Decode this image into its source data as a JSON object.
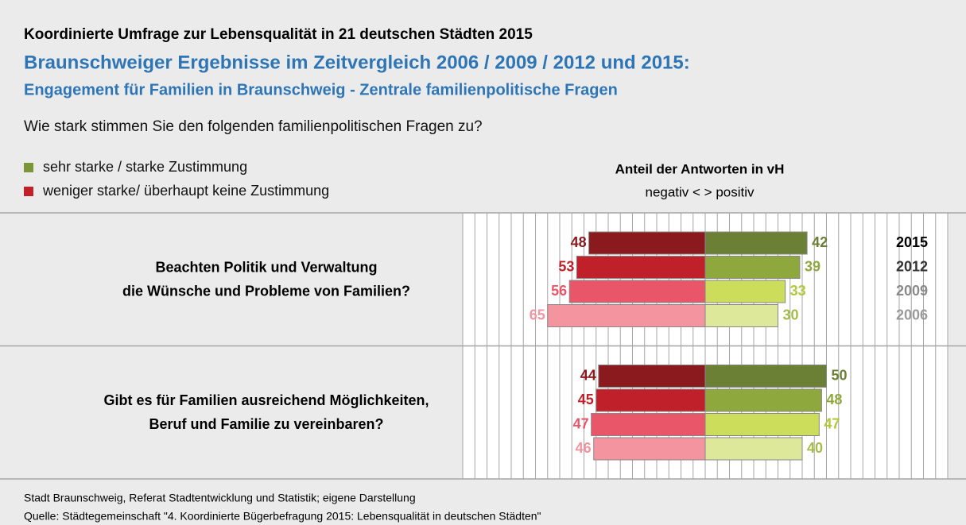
{
  "chart_data": {
    "type": "diverging_bar",
    "heading": "Koordinierte Umfrage zur Lebensqualität in 21 deutschen Städten 2015",
    "title": "Braunschweiger Ergebnisse im Zeitvergleich 2006 / 2009 / 2012 und 2015:",
    "subtitle": "Engagement für Familien in Braunschweig - Zentrale familienpolitische Fragen",
    "question": "Wie stark stimmen Sie den folgenden familienpolitischen Fragen zu?",
    "legend": [
      {
        "name": "sehr starke / starke Zustimmung",
        "color": "#7a9638"
      },
      {
        "name": "weniger starke/ überhaupt keine Zustimmung",
        "color": "#c0202a"
      }
    ],
    "axis_title": "Anteil der Antworten in vH",
    "axis_subtitle": "negativ < > positiv",
    "categories": [
      [
        "Beachten Politik und Verwaltung",
        "die Wünsche und Probleme von Familien?"
      ],
      [
        "Gibt es für Familien ausreichend Möglichkeiten,",
        "Beruf und Familie zu vereinbaren?"
      ]
    ],
    "series": [
      {
        "name": "2015",
        "name_color": "#000000",
        "positive": [
          42,
          50
        ],
        "negative": [
          48,
          44
        ],
        "positive_color": "#6b7f35",
        "negative_color": "#8b1a1f",
        "positive_label_color": "#6b7f35",
        "negative_label_color": "#8b1a1f"
      },
      {
        "name": "2012",
        "name_color": "#333333",
        "positive": [
          39,
          48
        ],
        "negative": [
          53,
          45
        ],
        "positive_color": "#8fa83e",
        "negative_color": "#c0202a",
        "positive_label_color": "#8fa83e",
        "negative_label_color": "#c0202a"
      },
      {
        "name": "2009",
        "name_color": "#8a8a8a",
        "positive": [
          33,
          47
        ],
        "negative": [
          56,
          47
        ],
        "positive_color": "#cbdd5a",
        "negative_color": "#e9566a",
        "positive_label_color": "#b3c83a",
        "negative_label_color": "#e9566a"
      },
      {
        "name": "2006",
        "name_color": "#9a9a9a",
        "positive": [
          30,
          40
        ],
        "negative": [
          65,
          46
        ],
        "positive_color": "#dde89a",
        "negative_color": "#f4949f",
        "positive_label_color": "#a3bd48",
        "negative_label_color": "#f4949f"
      }
    ],
    "xlim": [
      -100,
      100
    ],
    "xticks": [
      -100,
      -95,
      -90,
      -85,
      -80,
      -75,
      -70,
      -65,
      -60,
      -55,
      -50,
      -45,
      -40,
      -35,
      -30,
      -25,
      -20,
      -15,
      -10,
      -5,
      0,
      5,
      10,
      15,
      20,
      25,
      30,
      35,
      40,
      45,
      50,
      55,
      60,
      65,
      70,
      75,
      80,
      85,
      90,
      95,
      100
    ],
    "grid": true,
    "footer": [
      "Stadt Braunschweig, Referat Stadtentwicklung und Statistik; eigene Darstellung",
      "Quelle: Städtegemeinschaft \"4. Koordinierte Bügerbefragung 2015: Lebensqualität in deutschen Städten\""
    ]
  }
}
